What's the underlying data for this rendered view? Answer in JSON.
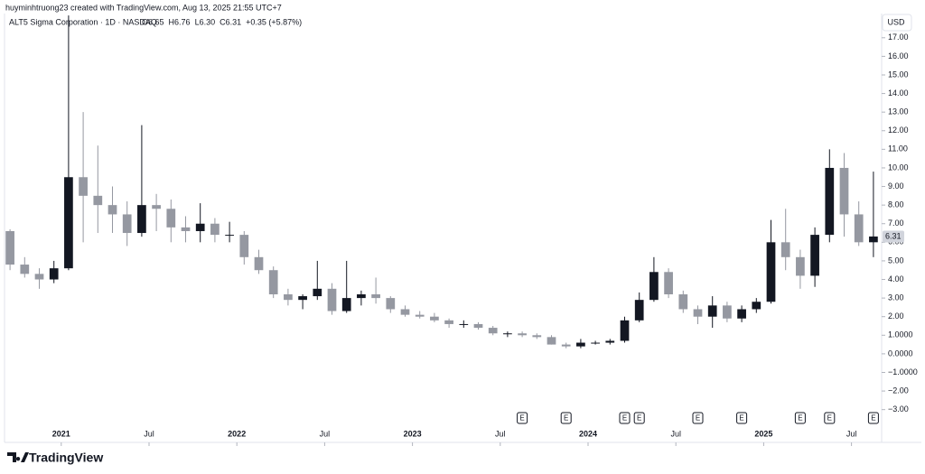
{
  "chart_data": {
    "type": "candlestick",
    "credit": "huyminhtruong23 created with TradingView.com, Aug 13, 2025 21:55 UTC+7",
    "title": "ALT5 Sigma Corporation · 1D · NASDAQ",
    "ohlc_labels": [
      "O6.65",
      "H6.76",
      "L6.30",
      "C6.31",
      "+0.35 (+5.87%)"
    ],
    "currency": "USD",
    "brand": "TradingView",
    "up_color": "#131722",
    "down_color": "#9598a1",
    "x": [
      "2020-09",
      "2020-10",
      "2020-11",
      "2020-12",
      "2021-01",
      "2021-02",
      "2021-03",
      "2021-04",
      "2021-05",
      "2021-06",
      "2021-07",
      "2021-08",
      "2021-09",
      "2021-10",
      "2021-11",
      "2021-12",
      "2022-01",
      "2022-02",
      "2022-03",
      "2022-04",
      "2022-05",
      "2022-06",
      "2022-07",
      "2022-08",
      "2022-09",
      "2022-10",
      "2022-11",
      "2022-12",
      "2023-01",
      "2023-02",
      "2023-03",
      "2023-04",
      "2023-05",
      "2023-06",
      "2023-07",
      "2023-08",
      "2023-09",
      "2023-10",
      "2023-11",
      "2023-12",
      "2024-01",
      "2024-02",
      "2024-03",
      "2024-04",
      "2024-05",
      "2024-06",
      "2024-07",
      "2024-08",
      "2024-09",
      "2024-10",
      "2024-11",
      "2024-12",
      "2025-01",
      "2025-02",
      "2025-03",
      "2025-04",
      "2025-05",
      "2025-06",
      "2025-07",
      "2025-08"
    ],
    "open": [
      6.6,
      4.8,
      4.3,
      4.0,
      4.6,
      9.5,
      8.5,
      8.0,
      7.5,
      6.5,
      8.0,
      7.8,
      6.8,
      6.6,
      7.0,
      6.4,
      6.4,
      5.2,
      4.5,
      3.2,
      2.9,
      3.1,
      3.5,
      2.3,
      3.0,
      3.2,
      3.0,
      2.4,
      2.1,
      2.0,
      1.8,
      1.6,
      1.6,
      1.4,
      1.1,
      1.1,
      1.0,
      0.9,
      0.5,
      0.4,
      0.6,
      0.6,
      0.7,
      1.8,
      2.9,
      4.4,
      3.2,
      2.4,
      2.0,
      2.6,
      1.9,
      2.4,
      2.8,
      6.0,
      5.2,
      4.2,
      6.4,
      10.0,
      7.5,
      6.0
    ],
    "high": [
      6.7,
      5.2,
      4.6,
      5.0,
      18.2,
      13.0,
      11.2,
      9.0,
      8.2,
      12.3,
      8.6,
      8.3,
      7.4,
      8.1,
      7.3,
      7.1,
      6.6,
      5.6,
      4.7,
      3.5,
      3.2,
      5.0,
      3.8,
      5.0,
      3.4,
      4.1,
      3.1,
      2.6,
      2.3,
      2.2,
      1.9,
      1.8,
      1.7,
      1.5,
      1.2,
      1.2,
      1.1,
      1.0,
      0.6,
      0.8,
      0.7,
      0.8,
      2.0,
      3.3,
      5.2,
      4.6,
      3.4,
      2.6,
      3.1,
      2.8,
      2.6,
      3.0,
      7.2,
      7.8,
      5.6,
      6.8,
      11.0,
      10.8,
      8.2,
      9.8
    ],
    "low": [
      4.5,
      4.1,
      3.5,
      3.8,
      4.5,
      6.0,
      6.5,
      6.5,
      5.8,
      6.3,
      6.6,
      6.0,
      6.0,
      6.0,
      6.0,
      6.0,
      4.8,
      4.3,
      3.0,
      2.6,
      2.4,
      2.9,
      2.1,
      2.2,
      2.6,
      2.7,
      2.2,
      2.0,
      1.9,
      1.7,
      1.4,
      1.4,
      1.3,
      1.0,
      0.9,
      0.9,
      0.8,
      0.5,
      0.3,
      0.3,
      0.5,
      0.5,
      0.6,
      1.7,
      2.8,
      3.0,
      2.2,
      1.6,
      1.4,
      1.7,
      1.7,
      2.2,
      2.7,
      4.5,
      3.5,
      3.6,
      6.0,
      6.3,
      5.8,
      5.2
    ],
    "close": [
      4.8,
      4.3,
      4.0,
      4.6,
      9.5,
      8.5,
      8.0,
      7.5,
      6.5,
      8.0,
      7.8,
      6.8,
      6.6,
      7.0,
      6.4,
      6.4,
      5.2,
      4.5,
      3.2,
      2.9,
      3.1,
      3.5,
      2.3,
      3.0,
      3.2,
      3.0,
      2.4,
      2.1,
      2.0,
      1.8,
      1.6,
      1.6,
      1.4,
      1.1,
      1.1,
      1.0,
      0.9,
      0.5,
      0.4,
      0.6,
      0.6,
      0.7,
      1.8,
      2.9,
      4.4,
      3.2,
      2.4,
      2.0,
      2.6,
      1.9,
      2.4,
      2.8,
      6.0,
      5.2,
      4.2,
      6.4,
      10.0,
      7.5,
      6.0,
      6.31
    ],
    "xlim": [
      "2020-09",
      "2025-09"
    ],
    "xticks": [
      {
        "value": "2021-01",
        "label": "2021"
      },
      {
        "value": "2021-07",
        "label": "Jul"
      },
      {
        "value": "2022-01",
        "label": "2022"
      },
      {
        "value": "2022-07",
        "label": "Jul"
      },
      {
        "value": "2023-01",
        "label": "2023"
      },
      {
        "value": "2023-07",
        "label": "Jul"
      },
      {
        "value": "2024-01",
        "label": "2024"
      },
      {
        "value": "2024-07",
        "label": "Jul"
      },
      {
        "value": "2025-01",
        "label": "2025"
      },
      {
        "value": "2025-07",
        "label": "Jul"
      }
    ],
    "ylim": [
      -3.55,
      18.35
    ],
    "yticks": [
      {
        "value": 17,
        "label": "17.00"
      },
      {
        "value": 16,
        "label": "16.00"
      },
      {
        "value": 15,
        "label": "15.00"
      },
      {
        "value": 14,
        "label": "14.00"
      },
      {
        "value": 13,
        "label": "13.00"
      },
      {
        "value": 12,
        "label": "12.00"
      },
      {
        "value": 11,
        "label": "11.00"
      },
      {
        "value": 10,
        "label": "10.00"
      },
      {
        "value": 9,
        "label": "9.00"
      },
      {
        "value": 8,
        "label": "8.00"
      },
      {
        "value": 7,
        "label": "7.00"
      },
      {
        "value": 6,
        "label": "6.00"
      },
      {
        "value": 5,
        "label": "5.00"
      },
      {
        "value": 4,
        "label": "4.00"
      },
      {
        "value": 3,
        "label": "3.00"
      },
      {
        "value": 2,
        "label": "2.00"
      },
      {
        "value": 1,
        "label": "1.0000"
      },
      {
        "value": 0,
        "label": "0.0000"
      },
      {
        "value": -1,
        "label": "−1.0000"
      },
      {
        "value": -2,
        "label": "−2.00"
      },
      {
        "value": -3,
        "label": "−3.00"
      }
    ],
    "events": [
      {
        "x": "2023-08",
        "label": "E"
      },
      {
        "x": "2023-11",
        "label": "E"
      },
      {
        "x": "2024-03",
        "label": "E"
      },
      {
        "x": "2024-04",
        "label": "E"
      },
      {
        "x": "2024-08",
        "label": "E"
      },
      {
        "x": "2024-11",
        "label": "E"
      },
      {
        "x": "2025-03",
        "label": "E"
      },
      {
        "x": "2025-05",
        "label": "E"
      },
      {
        "x": "2025-08",
        "label": "E"
      }
    ]
  }
}
